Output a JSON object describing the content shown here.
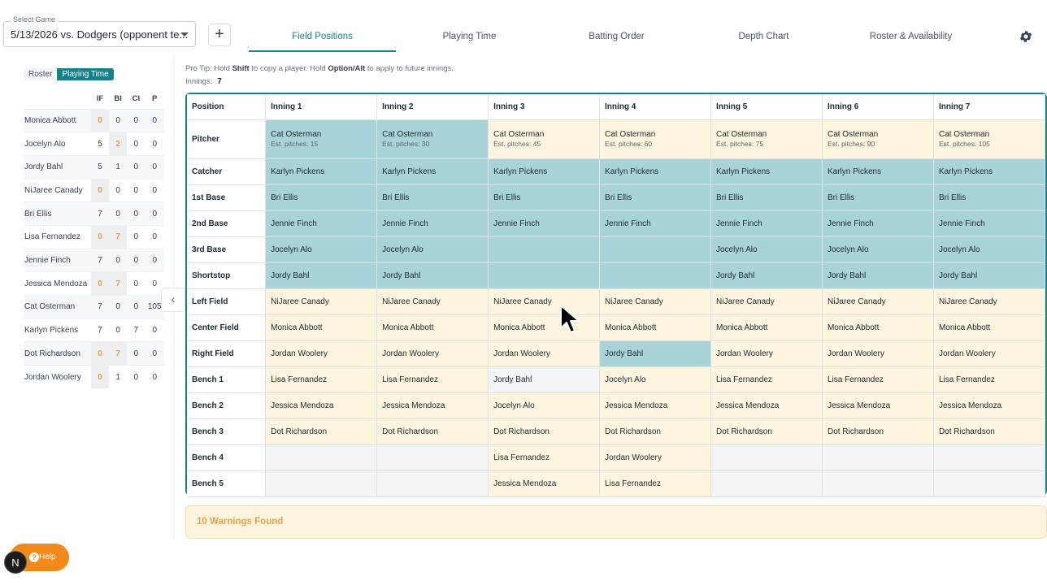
{
  "header": {
    "game_select_label": "Select Game",
    "game_select_value": "5/13/2026 vs. Dodgers (opponent te...",
    "add_label": "+",
    "tabs": [
      "Field Positions",
      "Playing Time",
      "Batting Order",
      "Depth Chart",
      "Roster & Availability"
    ],
    "active_tab": "Field Positions"
  },
  "sidebar": {
    "toggle": {
      "off": "Roster",
      "on": "Playing Time"
    },
    "columns": [
      "IF",
      "BI",
      "CI",
      "P"
    ],
    "players": [
      {
        "name": "Monica Abbott",
        "IF": "0",
        "BI": "0",
        "CI": "0",
        "P": "0",
        "warn": [
          "IF"
        ]
      },
      {
        "name": "Jocelyn Alo",
        "IF": "5",
        "BI": "2",
        "CI": "0",
        "P": "0",
        "warn": [
          "BI"
        ]
      },
      {
        "name": "Jordy Bahl",
        "IF": "5",
        "BI": "1",
        "CI": "0",
        "P": "0",
        "warn": []
      },
      {
        "name": "NiJaree Canady",
        "IF": "0",
        "BI": "0",
        "CI": "0",
        "P": "0",
        "warn": [
          "IF"
        ]
      },
      {
        "name": "Bri Ellis",
        "IF": "7",
        "BI": "0",
        "CI": "0",
        "P": "0",
        "warn": []
      },
      {
        "name": "Lisa Fernandez",
        "IF": "0",
        "BI": "7",
        "CI": "0",
        "P": "0",
        "warn": [
          "IF",
          "BI"
        ]
      },
      {
        "name": "Jennie Finch",
        "IF": "7",
        "BI": "0",
        "CI": "0",
        "P": "0",
        "warn": []
      },
      {
        "name": "Jessica Mendoza",
        "IF": "0",
        "BI": "7",
        "CI": "0",
        "P": "0",
        "warn": [
          "IF",
          "BI"
        ]
      },
      {
        "name": "Cat Osterman",
        "IF": "7",
        "BI": "0",
        "CI": "0",
        "P": "105",
        "warn": []
      },
      {
        "name": "Karlyn Pickens",
        "IF": "7",
        "BI": "0",
        "CI": "7",
        "P": "0",
        "warn": []
      },
      {
        "name": "Dot Richardson",
        "IF": "0",
        "BI": "7",
        "CI": "0",
        "P": "0",
        "warn": [
          "IF",
          "BI"
        ]
      },
      {
        "name": "Jordan Woolery",
        "IF": "0",
        "BI": "1",
        "CI": "0",
        "P": "0",
        "warn": [
          "IF"
        ]
      }
    ],
    "collapse_icon": "chevron-left-icon"
  },
  "main": {
    "tip_prefix": "Pro Tip: Hold ",
    "tip_key1": "Shift",
    "tip_mid": " to copy a player. Hold ",
    "tip_key2": "Option/Alt",
    "tip_suffix": " to apply to future innings.",
    "innings_label": "Innings:",
    "innings_value": "7",
    "position_header": "Position",
    "inning_headers": [
      "Inning 1",
      "Inning 2",
      "Inning 3",
      "Inning 4",
      "Inning 5",
      "Inning 6",
      "Inning 7"
    ],
    "rows": [
      {
        "position": "Pitcher",
        "cells": [
          {
            "name": "Cat Osterman",
            "sub": "Est. pitches: 15",
            "color": "teal"
          },
          {
            "name": "Cat Osterman",
            "sub": "Est. pitches: 30",
            "color": "teal"
          },
          {
            "name": "Cat Osterman",
            "sub": "Est. pitches: 45",
            "color": "cream"
          },
          {
            "name": "Cat Osterman",
            "sub": "Est. pitches: 60",
            "color": "cream"
          },
          {
            "name": "Cat Osterman",
            "sub": "Est. pitches: 75",
            "color": "cream"
          },
          {
            "name": "Cat Osterman",
            "sub": "Est. pitches: 90",
            "color": "cream"
          },
          {
            "name": "Cat Osterman",
            "sub": "Est. pitches: 105",
            "color": "cream"
          }
        ]
      },
      {
        "position": "Catcher",
        "cells": [
          {
            "name": "Karlyn Pickens",
            "color": "teal"
          },
          {
            "name": "Karlyn Pickens",
            "color": "teal"
          },
          {
            "name": "Karlyn Pickens",
            "color": "teal"
          },
          {
            "name": "Karlyn Pickens",
            "color": "teal"
          },
          {
            "name": "Karlyn Pickens",
            "color": "teal"
          },
          {
            "name": "Karlyn Pickens",
            "color": "teal"
          },
          {
            "name": "Karlyn Pickens",
            "color": "teal"
          }
        ]
      },
      {
        "position": "1st Base",
        "cells": [
          {
            "name": "Bri Ellis",
            "color": "teal"
          },
          {
            "name": "Bri Ellis",
            "color": "teal"
          },
          {
            "name": "Bri Ellis",
            "color": "teal"
          },
          {
            "name": "Bri Ellis",
            "color": "teal"
          },
          {
            "name": "Bri Ellis",
            "color": "teal"
          },
          {
            "name": "Bri Ellis",
            "color": "teal"
          },
          {
            "name": "Bri Ellis",
            "color": "teal"
          }
        ]
      },
      {
        "position": "2nd Base",
        "cells": [
          {
            "name": "Jennie Finch",
            "color": "teal"
          },
          {
            "name": "Jennie Finch",
            "color": "teal"
          },
          {
            "name": "Jennie Finch",
            "color": "teal"
          },
          {
            "name": "Jennie Finch",
            "color": "teal"
          },
          {
            "name": "Jennie Finch",
            "color": "teal"
          },
          {
            "name": "Jennie Finch",
            "color": "teal"
          },
          {
            "name": "Jennie Finch",
            "color": "teal"
          }
        ]
      },
      {
        "position": "3rd Base",
        "cells": [
          {
            "name": "Jocelyn Alo",
            "color": "teal"
          },
          {
            "name": "Jocelyn Alo",
            "color": "teal"
          },
          {
            "name": "",
            "color": "teal"
          },
          {
            "name": "",
            "color": "teal"
          },
          {
            "name": "Jocelyn Alo",
            "color": "teal"
          },
          {
            "name": "Jocelyn Alo",
            "color": "teal"
          },
          {
            "name": "Jocelyn Alo",
            "color": "teal"
          }
        ]
      },
      {
        "position": "Shortstop",
        "cells": [
          {
            "name": "Jordy Bahl",
            "color": "teal"
          },
          {
            "name": "Jordy Bahl",
            "color": "teal"
          },
          {
            "name": "",
            "color": "teal"
          },
          {
            "name": "",
            "color": "teal"
          },
          {
            "name": "Jordy Bahl",
            "color": "teal"
          },
          {
            "name": "Jordy Bahl",
            "color": "teal"
          },
          {
            "name": "Jordy Bahl",
            "color": "teal"
          }
        ]
      },
      {
        "position": "Left Field",
        "cells": [
          {
            "name": "NiJaree Canady",
            "color": "cream"
          },
          {
            "name": "NiJaree Canady",
            "color": "cream"
          },
          {
            "name": "NiJaree Canady",
            "color": "cream"
          },
          {
            "name": "NiJaree Canady",
            "color": "cream"
          },
          {
            "name": "NiJaree Canady",
            "color": "cream"
          },
          {
            "name": "NiJaree Canady",
            "color": "cream"
          },
          {
            "name": "NiJaree Canady",
            "color": "cream"
          }
        ]
      },
      {
        "position": "Center Field",
        "cells": [
          {
            "name": "Monica Abbott",
            "color": "cream"
          },
          {
            "name": "Monica Abbott",
            "color": "cream"
          },
          {
            "name": "Monica Abbott",
            "color": "cream"
          },
          {
            "name": "Monica Abbott",
            "color": "cream"
          },
          {
            "name": "Monica Abbott",
            "color": "cream"
          },
          {
            "name": "Monica Abbott",
            "color": "cream"
          },
          {
            "name": "Monica Abbott",
            "color": "cream"
          }
        ]
      },
      {
        "position": "Right Field",
        "cells": [
          {
            "name": "Jordan Woolery",
            "color": "cream"
          },
          {
            "name": "Jordan Woolery",
            "color": "cream"
          },
          {
            "name": "Jordan Woolery",
            "color": "cream"
          },
          {
            "name": "Jordy Bahl",
            "color": "teal"
          },
          {
            "name": "Jordan Woolery",
            "color": "cream"
          },
          {
            "name": "Jordan Woolery",
            "color": "cream"
          },
          {
            "name": "Jordan Woolery",
            "color": "cream"
          }
        ]
      },
      {
        "position": "Bench 1",
        "cells": [
          {
            "name": "Lisa Fernandez",
            "color": "cream"
          },
          {
            "name": "Lisa Fernandez",
            "color": "cream"
          },
          {
            "name": "Jordy Bahl",
            "color": "gray"
          },
          {
            "name": "Jocelyn Alo",
            "color": "cream"
          },
          {
            "name": "Lisa Fernandez",
            "color": "cream"
          },
          {
            "name": "Lisa Fernandez",
            "color": "cream"
          },
          {
            "name": "Lisa Fernandez",
            "color": "cream"
          }
        ]
      },
      {
        "position": "Bench 2",
        "cells": [
          {
            "name": "Jessica Mendoza",
            "color": "cream"
          },
          {
            "name": "Jessica Mendoza",
            "color": "cream"
          },
          {
            "name": "Jocelyn Alo",
            "color": "cream"
          },
          {
            "name": "Jessica Mendoza",
            "color": "cream"
          },
          {
            "name": "Jessica Mendoza",
            "color": "cream"
          },
          {
            "name": "Jessica Mendoza",
            "color": "cream"
          },
          {
            "name": "Jessica Mendoza",
            "color": "cream"
          }
        ]
      },
      {
        "position": "Bench 3",
        "cells": [
          {
            "name": "Dot Richardson",
            "color": "cream"
          },
          {
            "name": "Dot Richardson",
            "color": "cream"
          },
          {
            "name": "Dot Richardson",
            "color": "cream"
          },
          {
            "name": "Dot Richardson",
            "color": "cream"
          },
          {
            "name": "Dot Richardson",
            "color": "cream"
          },
          {
            "name": "Dot Richardson",
            "color": "cream"
          },
          {
            "name": "Dot Richardson",
            "color": "cream"
          }
        ]
      },
      {
        "position": "Bench 4",
        "cells": [
          {
            "name": "",
            "color": "gray"
          },
          {
            "name": "",
            "color": "gray"
          },
          {
            "name": "Lisa Fernandez",
            "color": "cream"
          },
          {
            "name": "Jordan Woolery",
            "color": "cream"
          },
          {
            "name": "",
            "color": "gray"
          },
          {
            "name": "",
            "color": "gray"
          },
          {
            "name": "",
            "color": "gray"
          }
        ]
      },
      {
        "position": "Bench 5",
        "cells": [
          {
            "name": "",
            "color": "gray"
          },
          {
            "name": "",
            "color": "gray"
          },
          {
            "name": "Jessica Mendoza",
            "color": "cream"
          },
          {
            "name": "Lisa Fernandez",
            "color": "cream"
          },
          {
            "name": "",
            "color": "gray"
          },
          {
            "name": "",
            "color": "gray"
          },
          {
            "name": "",
            "color": "gray"
          }
        ]
      }
    ],
    "warnings_text": "10 Warnings Found"
  },
  "help": {
    "label": "Help",
    "avatar_letter": "N"
  },
  "colors": {
    "accent": "#17818a",
    "teal_cell": "#a8d3d8",
    "cream_cell": "#fdf4de",
    "warning": "#e8a24a",
    "help_button": "#f28a1a"
  },
  "icons": {
    "settings": "gear-icon",
    "add": "plus-icon",
    "dropdown": "chevron-down-icon",
    "help": "question-icon",
    "pointer": "cursor-icon"
  }
}
